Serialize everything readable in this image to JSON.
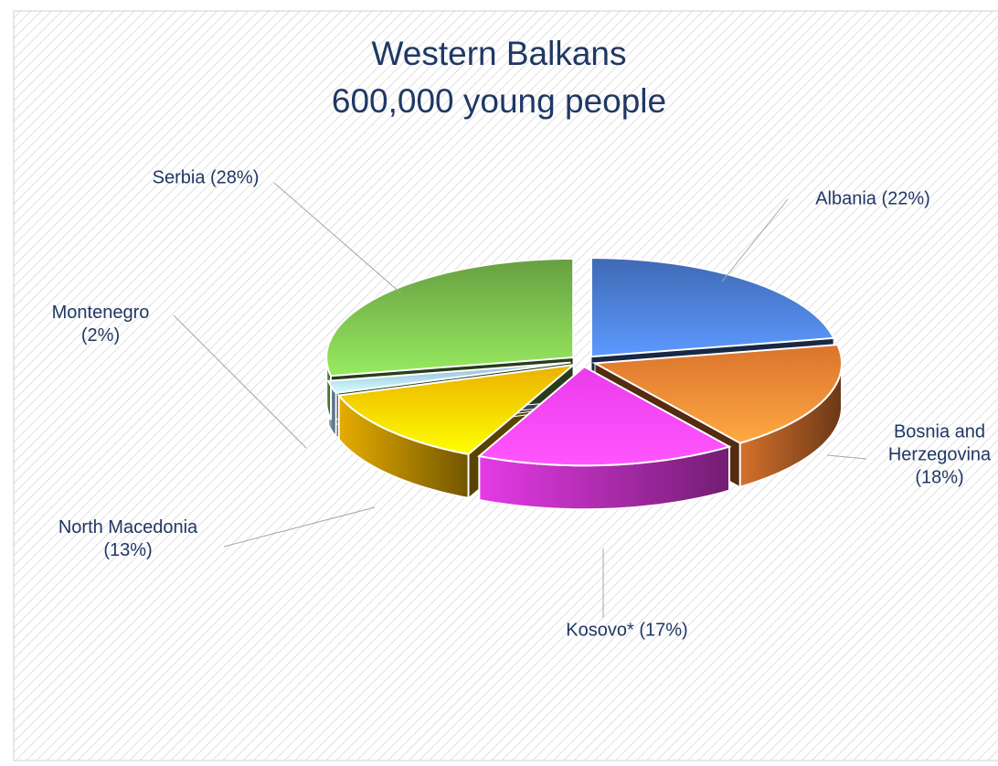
{
  "chart_data": {
    "type": "pie3d",
    "title": "Western Balkans",
    "subtitle": "600,000 young people",
    "labels": [
      "Albania (22%)",
      "Bosnia and\nHerzegovina\n(18%)",
      "Kosovo* (17%)",
      "North Macedonia\n(13%)",
      "Montenegro\n(2%)",
      "Serbia (28%)"
    ],
    "values": [
      22,
      18,
      17,
      13,
      2,
      28
    ],
    "colors": [
      "#4472c4",
      "#ed7d31",
      "#ff40ff",
      "#ffc000",
      "#9dc3e6",
      "#70ad47"
    ]
  }
}
